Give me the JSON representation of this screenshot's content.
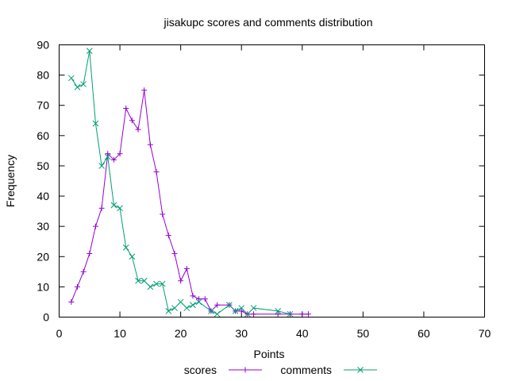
{
  "chart_data": {
    "type": "line",
    "title": "jisakupc scores and comments distribution",
    "xlabel": "Points",
    "ylabel": "Frequency",
    "xlim": [
      0,
      70
    ],
    "ylim": [
      0,
      90
    ],
    "xticks": [
      "0",
      "10",
      "20",
      "30",
      "40",
      "50",
      "60",
      "70"
    ],
    "yticks": [
      "0",
      "10",
      "20",
      "30",
      "40",
      "50",
      "60",
      "70",
      "80",
      "90"
    ],
    "grid": false,
    "legend_position": "bottom-center",
    "series": [
      {
        "name": "scores",
        "color": "#9400d3",
        "marker": "plus",
        "x": [
          2,
          3,
          4,
          5,
          6,
          7,
          8,
          9,
          10,
          11,
          12,
          13,
          14,
          15,
          16,
          17,
          18,
          19,
          20,
          21,
          22,
          23,
          24,
          25,
          26,
          28,
          29,
          30,
          31,
          32,
          36,
          38,
          40,
          41
        ],
        "y": [
          5,
          10,
          15,
          21,
          30,
          36,
          54,
          52,
          54,
          69,
          65,
          62,
          75,
          57,
          48,
          34,
          27,
          21,
          12,
          16,
          7,
          6,
          6,
          2,
          4,
          4,
          2,
          2,
          1,
          1,
          1,
          1,
          1,
          1
        ]
      },
      {
        "name": "comments",
        "color": "#009e73",
        "marker": "cross",
        "x": [
          2,
          3,
          4,
          5,
          6,
          7,
          8,
          9,
          10,
          11,
          12,
          13,
          14,
          15,
          16,
          17,
          18,
          19,
          20,
          21,
          22,
          23,
          25,
          26,
          28,
          29,
          30,
          31,
          32,
          36,
          38
        ],
        "y": [
          79,
          76,
          77,
          88,
          64,
          50,
          53,
          37,
          36,
          23,
          20,
          12,
          12,
          10,
          11,
          11,
          2,
          3,
          5,
          3,
          4,
          5,
          2,
          1,
          4,
          2,
          3,
          1,
          3,
          2,
          1
        ]
      }
    ]
  }
}
